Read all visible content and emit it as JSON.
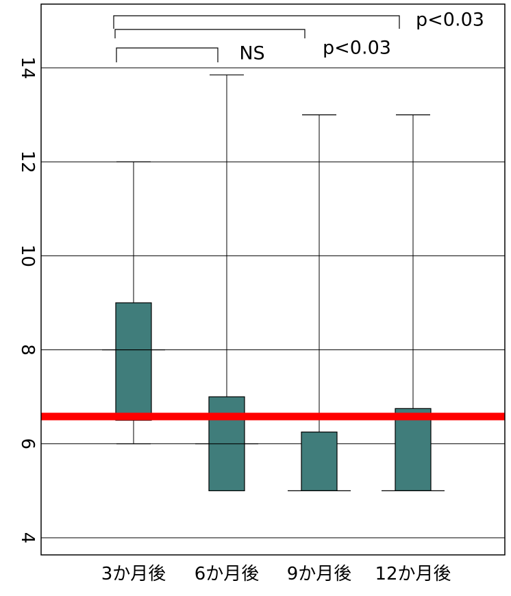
{
  "chart_data": {
    "type": "box",
    "categories": [
      "3か月後",
      "6か月後",
      "9か月後",
      "12か月後"
    ],
    "y_ticks": [
      4,
      6,
      8,
      10,
      12,
      14
    ],
    "ylim": [
      3.8,
      15.3
    ],
    "grid": true,
    "colors": {
      "box": "#407d7b",
      "reference_line": "#ff0000"
    },
    "reference_line": 6.58,
    "boxes": [
      {
        "category": "3か月後",
        "min": 6.0,
        "q1": 6.5,
        "median": 8.0,
        "q3": 9.0,
        "max": 12.0
      },
      {
        "category": "6か月後",
        "min": 5.0,
        "q1": 5.0,
        "median": 6.0,
        "q3": 7.0,
        "max": 13.85
      },
      {
        "category": "9か月後",
        "min": 5.0,
        "q1": 5.0,
        "median": 5.0,
        "q3": 6.25,
        "max": 13.0
      },
      {
        "category": "12か月後",
        "min": 5.0,
        "q1": 5.0,
        "median": 5.0,
        "q3": 6.75,
        "max": 13.0
      }
    ],
    "annotations": [
      {
        "from": "3か月後",
        "to": "6か月後",
        "label": "NS"
      },
      {
        "from": "3か月後",
        "to": "9か月後",
        "label": "p<0.03"
      },
      {
        "from": "3か月後",
        "to": "12か月後",
        "label": "p<0.03"
      }
    ]
  }
}
